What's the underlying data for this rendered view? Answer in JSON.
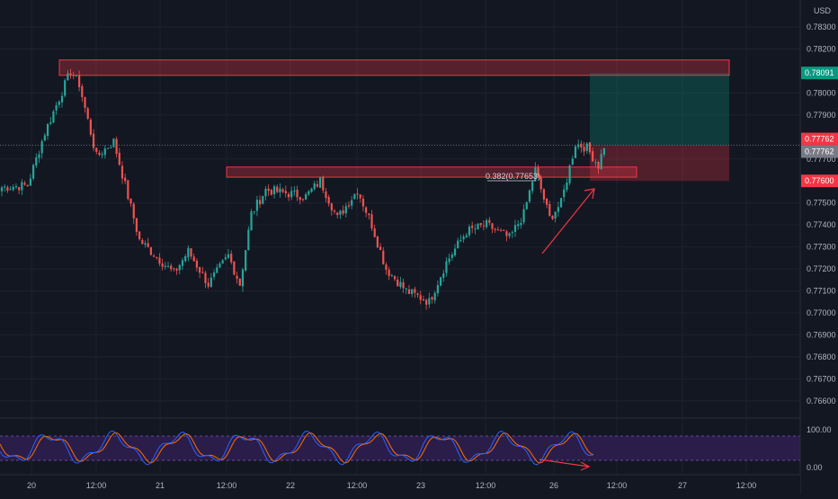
{
  "colors": {
    "background": "#131722",
    "grid": "#1e2230",
    "up": "#26a69a",
    "down": "#ef5350",
    "zone_fill": "rgba(242,54,69,0.30)",
    "zone_stroke": "#f23645",
    "target_fill": "rgba(8,153,129,0.28)",
    "stop_fill": "rgba(242,54,69,0.28)",
    "stoch_band": "#2a1d4a",
    "stoch_k": "#2962ff",
    "stoch_d": "#ff6d00",
    "axis_text": "#b2b5be",
    "arrow": "#f23645",
    "fib": "#d1d4dc"
  },
  "price_axis": {
    "currency": "USD",
    "labels": [
      "0.78300",
      "0.78200",
      "0.78000",
      "0.77900",
      "0.77700",
      "0.77500",
      "0.77400",
      "0.77300",
      "0.77200",
      "0.77100",
      "0.77000",
      "0.76900",
      "0.76800",
      "0.76700",
      "0.76600"
    ],
    "badges": [
      {
        "text": "0.78091",
        "value": 0.78091,
        "color": "#089981"
      },
      {
        "text": "0.77762",
        "value": 0.77762,
        "color": "#f23645",
        "offset": -7
      },
      {
        "text": "0.77762",
        "value": 0.77762,
        "color": "#787b86",
        "offset": 7
      },
      {
        "text": "0.77600",
        "value": 0.776,
        "color": "#f23645"
      }
    ]
  },
  "stoch_axis": {
    "labels": [
      "100.00",
      "0.00"
    ]
  },
  "time_axis": {
    "labels": [
      "20",
      "12:00",
      "21",
      "12:00",
      "22",
      "12:00",
      "23",
      "12:00",
      "26",
      "12:00",
      "27",
      "12:00"
    ]
  },
  "fib_label": "0.382(0.77653)",
  "last_price": 0.77762,
  "chart_data": {
    "type": "candlestick",
    "symbol_unit": "USD",
    "y_range": [
      0.7655,
      0.7839
    ],
    "zones": [
      {
        "name": "resistance",
        "top": 0.7815,
        "bottom": 0.7808
      },
      {
        "name": "support",
        "top": 0.77663,
        "bottom": 0.77617
      }
    ],
    "position": {
      "entry": 0.77762,
      "target": 0.78091,
      "stop": 0.776
    },
    "series_bands": [
      {
        "start": 0.7757,
        "end": 0.7758,
        "n": 10
      },
      {
        "start": 0.7758,
        "end": 0.7782,
        "n": 6
      },
      {
        "start": 0.7782,
        "end": 0.781,
        "n": 9
      },
      {
        "start": 0.781,
        "end": 0.7804,
        "n": 3
      },
      {
        "start": 0.7804,
        "end": 0.7771,
        "n": 6
      },
      {
        "start": 0.7771,
        "end": 0.7778,
        "n": 6
      },
      {
        "start": 0.7778,
        "end": 0.7733,
        "n": 9
      },
      {
        "start": 0.7733,
        "end": 0.7718,
        "n": 12
      },
      {
        "start": 0.7718,
        "end": 0.7728,
        "n": 5
      },
      {
        "start": 0.7728,
        "end": 0.7713,
        "n": 7
      },
      {
        "start": 0.7713,
        "end": 0.7726,
        "n": 7
      },
      {
        "start": 0.7726,
        "end": 0.7713,
        "n": 4
      },
      {
        "start": 0.7713,
        "end": 0.7745,
        "n": 4
      },
      {
        "start": 0.7745,
        "end": 0.7756,
        "n": 5
      },
      {
        "start": 0.7756,
        "end": 0.7753,
        "n": 14
      },
      {
        "start": 0.7753,
        "end": 0.776,
        "n": 5
      },
      {
        "start": 0.776,
        "end": 0.7743,
        "n": 6
      },
      {
        "start": 0.7743,
        "end": 0.7756,
        "n": 7
      },
      {
        "start": 0.7756,
        "end": 0.774,
        "n": 5
      },
      {
        "start": 0.774,
        "end": 0.772,
        "n": 5
      },
      {
        "start": 0.772,
        "end": 0.771,
        "n": 7
      },
      {
        "start": 0.771,
        "end": 0.7705,
        "n": 8
      },
      {
        "start": 0.7705,
        "end": 0.7723,
        "n": 6
      },
      {
        "start": 0.7723,
        "end": 0.7737,
        "n": 7
      },
      {
        "start": 0.7737,
        "end": 0.774,
        "n": 7
      },
      {
        "start": 0.774,
        "end": 0.7734,
        "n": 8
      },
      {
        "start": 0.7734,
        "end": 0.7745,
        "n": 5
      },
      {
        "start": 0.7745,
        "end": 0.7765,
        "n": 4
      },
      {
        "start": 0.7765,
        "end": 0.7743,
        "n": 5
      },
      {
        "start": 0.7743,
        "end": 0.775,
        "n": 4
      },
      {
        "start": 0.775,
        "end": 0.7777,
        "n": 5
      },
      {
        "start": 0.7777,
        "end": 0.7775,
        "n": 4
      },
      {
        "start": 0.7775,
        "end": 0.7767,
        "n": 4
      },
      {
        "start": 0.7767,
        "end": 0.7776,
        "n": 2
      }
    ]
  }
}
